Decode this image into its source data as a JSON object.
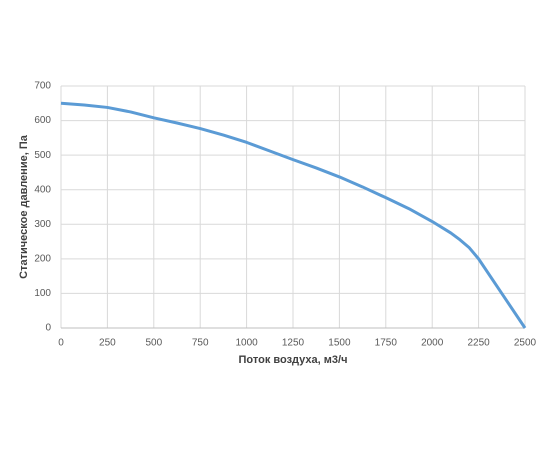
{
  "chart_data": {
    "type": "line",
    "x_label": "Поток воздуха, м3/ч",
    "y_label": "Статическое давление, Па",
    "x": [
      0,
      125,
      250,
      375,
      500,
      625,
      750,
      875,
      1000,
      1125,
      1250,
      1375,
      1500,
      1625,
      1750,
      1875,
      2000,
      2100,
      2150,
      2200,
      2250,
      2375,
      2500
    ],
    "series": [
      {
        "color": "#5b9bd5",
        "values": [
          650,
          645,
          638,
          625,
          608,
          593,
          577,
          558,
          537,
          512,
          487,
          463,
          437,
          408,
          377,
          345,
          308,
          275,
          255,
          232,
          200,
          100,
          0
        ]
      }
    ],
    "xlim": [
      0,
      2500
    ],
    "xticks": [
      0,
      250,
      500,
      750,
      1000,
      1250,
      1500,
      1750,
      2000,
      2250,
      2500
    ],
    "ylim": [
      0,
      700
    ],
    "yticks": [
      0,
      100,
      200,
      300,
      400,
      500,
      600,
      700
    ],
    "grid": true
  }
}
